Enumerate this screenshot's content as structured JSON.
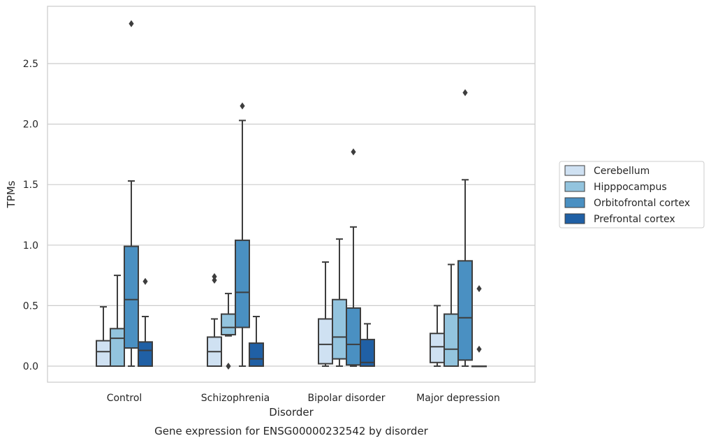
{
  "chart_data": {
    "type": "box",
    "title": "",
    "caption": "Gene expression for ENSG00000232542 by disorder",
    "xlabel": "Disorder",
    "ylabel": "TPMs",
    "ylim": [
      -0.14,
      2.98
    ],
    "yticks": [
      0.0,
      0.5,
      1.0,
      1.5,
      2.0,
      2.5
    ],
    "ytick_labels": [
      "0.0",
      "0.5",
      "1.0",
      "1.5",
      "2.0",
      "2.5"
    ],
    "grid": "horizontal",
    "legend_position": "right",
    "categories": [
      "Control",
      "Schizophrenia",
      "Bipolar disorder",
      "Major depression"
    ],
    "series": [
      {
        "name": "Cerebellum",
        "color": "#cfe1f2",
        "boxes": [
          {
            "min": 0.0,
            "q1": 0.0,
            "median": 0.12,
            "q3": 0.21,
            "max": 0.49,
            "outliers": []
          },
          {
            "min": 0.0,
            "q1": 0.0,
            "median": 0.12,
            "q3": 0.24,
            "max": 0.39,
            "outliers": [
              0.71,
              0.74
            ]
          },
          {
            "min": 0.0,
            "q1": 0.02,
            "median": 0.18,
            "q3": 0.39,
            "max": 0.86,
            "outliers": []
          },
          {
            "min": 0.0,
            "q1": 0.03,
            "median": 0.16,
            "q3": 0.27,
            "max": 0.5,
            "outliers": []
          }
        ]
      },
      {
        "name": "Hipppocampus",
        "color": "#93c4de",
        "boxes": [
          {
            "min": 0.0,
            "q1": 0.0,
            "median": 0.23,
            "q3": 0.31,
            "max": 0.75,
            "outliers": []
          },
          {
            "min": 0.25,
            "q1": 0.26,
            "median": 0.32,
            "q3": 0.43,
            "max": 0.6,
            "outliers": [
              0.0
            ]
          },
          {
            "min": 0.0,
            "q1": 0.06,
            "median": 0.24,
            "q3": 0.55,
            "max": 1.05,
            "outliers": []
          },
          {
            "min": 0.0,
            "q1": 0.0,
            "median": 0.14,
            "q3": 0.43,
            "max": 0.84,
            "outliers": []
          }
        ]
      },
      {
        "name": "Orbitofrontal cortex",
        "color": "#4a90c2",
        "boxes": [
          {
            "min": 0.0,
            "q1": 0.15,
            "median": 0.55,
            "q3": 0.99,
            "max": 1.53,
            "outliers": [
              2.83
            ]
          },
          {
            "min": 0.0,
            "q1": 0.32,
            "median": 0.61,
            "q3": 1.04,
            "max": 2.03,
            "outliers": [
              2.15
            ]
          },
          {
            "min": 0.0,
            "q1": 0.01,
            "median": 0.18,
            "q3": 0.48,
            "max": 1.15,
            "outliers": [
              1.77
            ]
          },
          {
            "min": 0.0,
            "q1": 0.05,
            "median": 0.4,
            "q3": 0.87,
            "max": 1.54,
            "outliers": [
              2.26
            ]
          }
        ]
      },
      {
        "name": "Prefrontal cortex",
        "color": "#2060a5",
        "boxes": [
          {
            "min": 0.0,
            "q1": 0.0,
            "median": 0.13,
            "q3": 0.2,
            "max": 0.41,
            "outliers": [
              0.7
            ]
          },
          {
            "min": 0.0,
            "q1": 0.0,
            "median": 0.06,
            "q3": 0.19,
            "max": 0.41,
            "outliers": []
          },
          {
            "min": 0.0,
            "q1": 0.0,
            "median": 0.03,
            "q3": 0.22,
            "max": 0.35,
            "outliers": []
          },
          {
            "min": 0.0,
            "q1": 0.0,
            "median": 0.0,
            "q3": 0.0,
            "max": 0.0,
            "outliers": [
              0.14,
              0.64
            ]
          }
        ]
      }
    ]
  }
}
